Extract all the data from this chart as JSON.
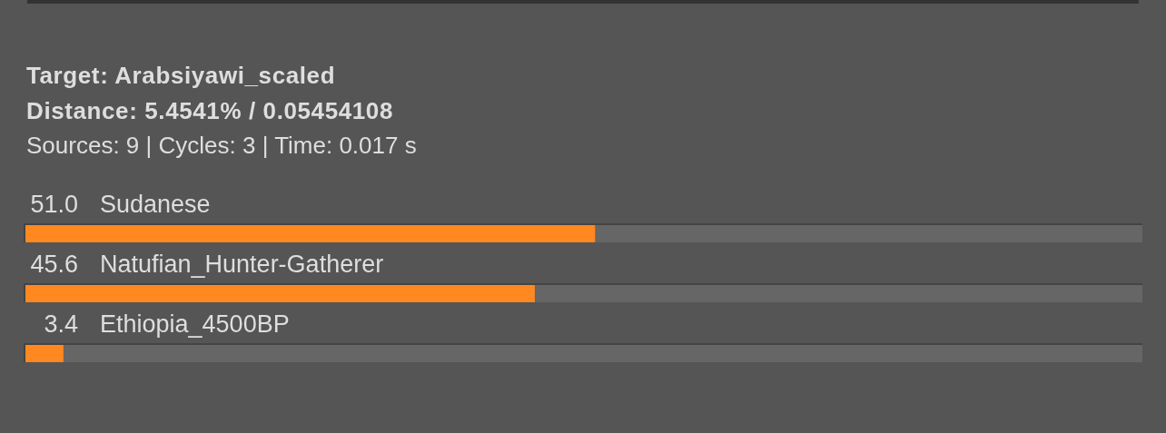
{
  "chart_data": {
    "type": "bar",
    "orientation": "horizontal",
    "title": "Target: Arabsiyawi_scaled",
    "subtitle": "Distance: 5.4541% / 0.05454108",
    "annotations": [
      "Sources: 9 | Cycles: 3 | Time: 0.017 s"
    ],
    "categories": [
      "Sudanese",
      "Natufian_Hunter-Gatherer",
      "Ethiopia_4500BP"
    ],
    "values": [
      51.0,
      45.6,
      3.4
    ],
    "value_labels": [
      "51.0",
      "45.6",
      "3.4"
    ],
    "color": "#ff8820",
    "xlim": [
      0,
      100
    ],
    "tick_labels": "y"
  }
}
